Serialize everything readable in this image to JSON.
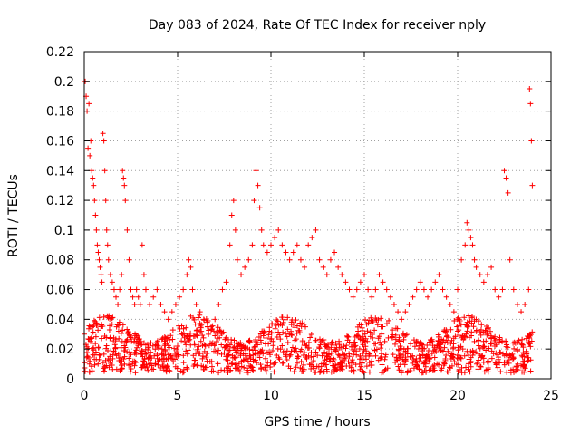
{
  "chart_data": {
    "type": "scatter",
    "title": "Day 083 of 2024, Rate Of TEC Index for receiver nply",
    "xlabel": "GPS time / hours",
    "ylabel": "ROTI / TECUs",
    "xlim": [
      0,
      25
    ],
    "ylim": [
      0,
      0.22
    ],
    "xticks": [
      0,
      5,
      10,
      15,
      20,
      25
    ],
    "xtick_labels": [
      "0",
      "5",
      "10",
      "15",
      "20",
      "25"
    ],
    "yticks": [
      0,
      0.02,
      0.04,
      0.06,
      0.08,
      0.1,
      0.12,
      0.14,
      0.16,
      0.18,
      0.2,
      0.22
    ],
    "ytick_labels": [
      "0",
      "0.02",
      "0.04",
      "0.06",
      "0.08",
      "0.1",
      "0.12",
      "0.14",
      "0.16",
      "0.18",
      "0.2",
      "0.22"
    ],
    "grid": true,
    "marker": "+",
    "color": "#ff0000",
    "series": [
      {
        "name": "ROTI",
        "points": [
          [
            0.0,
            0.03
          ],
          [
            0.05,
            0.2
          ],
          [
            0.1,
            0.19
          ],
          [
            0.15,
            0.18
          ],
          [
            0.2,
            0.155
          ],
          [
            0.25,
            0.185
          ],
          [
            0.3,
            0.15
          ],
          [
            0.35,
            0.16
          ],
          [
            0.4,
            0.14
          ],
          [
            0.45,
            0.135
          ],
          [
            0.5,
            0.13
          ],
          [
            0.55,
            0.12
          ],
          [
            0.6,
            0.11
          ],
          [
            0.65,
            0.1
          ],
          [
            0.7,
            0.09
          ],
          [
            0.75,
            0.085
          ],
          [
            0.8,
            0.08
          ],
          [
            0.85,
            0.075
          ],
          [
            0.9,
            0.07
          ],
          [
            0.95,
            0.065
          ],
          [
            1.0,
            0.165
          ],
          [
            1.05,
            0.16
          ],
          [
            1.1,
            0.14
          ],
          [
            1.15,
            0.12
          ],
          [
            1.2,
            0.1
          ],
          [
            1.25,
            0.09
          ],
          [
            1.3,
            0.08
          ],
          [
            1.4,
            0.07
          ],
          [
            1.5,
            0.065
          ],
          [
            1.6,
            0.06
          ],
          [
            1.7,
            0.055
          ],
          [
            1.8,
            0.05
          ],
          [
            1.9,
            0.06
          ],
          [
            2.0,
            0.07
          ],
          [
            2.05,
            0.14
          ],
          [
            2.1,
            0.135
          ],
          [
            2.15,
            0.13
          ],
          [
            2.2,
            0.12
          ],
          [
            2.3,
            0.1
          ],
          [
            2.4,
            0.08
          ],
          [
            2.5,
            0.06
          ],
          [
            2.6,
            0.055
          ],
          [
            2.7,
            0.05
          ],
          [
            2.8,
            0.06
          ],
          [
            2.9,
            0.055
          ],
          [
            3.0,
            0.05
          ],
          [
            3.1,
            0.09
          ],
          [
            3.2,
            0.07
          ],
          [
            3.3,
            0.06
          ],
          [
            3.5,
            0.05
          ],
          [
            3.7,
            0.055
          ],
          [
            3.9,
            0.06
          ],
          [
            4.1,
            0.05
          ],
          [
            4.3,
            0.045
          ],
          [
            4.5,
            0.04
          ],
          [
            4.7,
            0.045
          ],
          [
            4.9,
            0.05
          ],
          [
            5.1,
            0.055
          ],
          [
            5.3,
            0.06
          ],
          [
            5.5,
            0.07
          ],
          [
            5.6,
            0.08
          ],
          [
            5.7,
            0.075
          ],
          [
            5.8,
            0.06
          ],
          [
            6.0,
            0.05
          ],
          [
            6.2,
            0.045
          ],
          [
            6.4,
            0.04
          ],
          [
            6.6,
            0.035
          ],
          [
            6.8,
            0.035
          ],
          [
            7.0,
            0.04
          ],
          [
            7.2,
            0.05
          ],
          [
            7.4,
            0.06
          ],
          [
            7.6,
            0.065
          ],
          [
            7.8,
            0.09
          ],
          [
            7.9,
            0.11
          ],
          [
            8.0,
            0.12
          ],
          [
            8.1,
            0.1
          ],
          [
            8.2,
            0.08
          ],
          [
            8.4,
            0.07
          ],
          [
            8.6,
            0.075
          ],
          [
            8.8,
            0.08
          ],
          [
            9.0,
            0.09
          ],
          [
            9.1,
            0.12
          ],
          [
            9.2,
            0.14
          ],
          [
            9.3,
            0.13
          ],
          [
            9.4,
            0.115
          ],
          [
            9.5,
            0.1
          ],
          [
            9.6,
            0.09
          ],
          [
            9.8,
            0.085
          ],
          [
            10.0,
            0.09
          ],
          [
            10.2,
            0.095
          ],
          [
            10.4,
            0.1
          ],
          [
            10.6,
            0.09
          ],
          [
            10.8,
            0.085
          ],
          [
            11.0,
            0.08
          ],
          [
            11.2,
            0.085
          ],
          [
            11.4,
            0.09
          ],
          [
            11.6,
            0.08
          ],
          [
            11.8,
            0.075
          ],
          [
            12.0,
            0.09
          ],
          [
            12.2,
            0.095
          ],
          [
            12.4,
            0.1
          ],
          [
            12.6,
            0.08
          ],
          [
            12.8,
            0.075
          ],
          [
            13.0,
            0.07
          ],
          [
            13.2,
            0.08
          ],
          [
            13.4,
            0.085
          ],
          [
            13.6,
            0.075
          ],
          [
            13.8,
            0.07
          ],
          [
            14.0,
            0.065
          ],
          [
            14.2,
            0.06
          ],
          [
            14.4,
            0.055
          ],
          [
            14.6,
            0.06
          ],
          [
            14.8,
            0.065
          ],
          [
            15.0,
            0.07
          ],
          [
            15.2,
            0.06
          ],
          [
            15.4,
            0.055
          ],
          [
            15.6,
            0.06
          ],
          [
            15.8,
            0.07
          ],
          [
            16.0,
            0.065
          ],
          [
            16.2,
            0.06
          ],
          [
            16.4,
            0.055
          ],
          [
            16.6,
            0.05
          ],
          [
            16.8,
            0.045
          ],
          [
            17.0,
            0.04
          ],
          [
            17.2,
            0.045
          ],
          [
            17.4,
            0.05
          ],
          [
            17.6,
            0.055
          ],
          [
            17.8,
            0.06
          ],
          [
            18.0,
            0.065
          ],
          [
            18.2,
            0.06
          ],
          [
            18.4,
            0.055
          ],
          [
            18.6,
            0.06
          ],
          [
            18.8,
            0.065
          ],
          [
            19.0,
            0.07
          ],
          [
            19.2,
            0.06
          ],
          [
            19.4,
            0.055
          ],
          [
            19.6,
            0.05
          ],
          [
            19.8,
            0.045
          ],
          [
            20.0,
            0.06
          ],
          [
            20.2,
            0.08
          ],
          [
            20.4,
            0.09
          ],
          [
            20.5,
            0.105
          ],
          [
            20.6,
            0.1
          ],
          [
            20.7,
            0.095
          ],
          [
            20.8,
            0.09
          ],
          [
            20.9,
            0.08
          ],
          [
            21.0,
            0.075
          ],
          [
            21.2,
            0.07
          ],
          [
            21.4,
            0.065
          ],
          [
            21.6,
            0.07
          ],
          [
            21.8,
            0.075
          ],
          [
            22.0,
            0.06
          ],
          [
            22.2,
            0.055
          ],
          [
            22.4,
            0.06
          ],
          [
            22.5,
            0.14
          ],
          [
            22.6,
            0.135
          ],
          [
            22.7,
            0.125
          ],
          [
            22.8,
            0.08
          ],
          [
            23.0,
            0.06
          ],
          [
            23.2,
            0.05
          ],
          [
            23.4,
            0.045
          ],
          [
            23.6,
            0.05
          ],
          [
            23.8,
            0.06
          ],
          [
            23.85,
            0.195
          ],
          [
            23.9,
            0.185
          ],
          [
            23.95,
            0.16
          ],
          [
            24.0,
            0.13
          ]
        ]
      }
    ]
  }
}
